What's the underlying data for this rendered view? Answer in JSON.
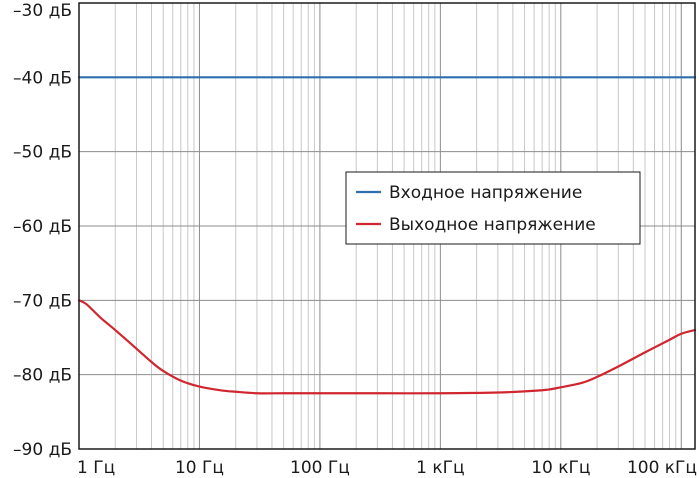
{
  "chart_data": {
    "type": "line",
    "xscale": "log",
    "xlim": [
      1,
      130000
    ],
    "ylim": [
      -90,
      -30
    ],
    "grid": true,
    "yticks": [
      -30,
      -40,
      -50,
      -60,
      -70,
      -80,
      -90
    ],
    "ytick_labels": [
      "–30 дБ",
      "–40 дБ",
      "–50 дБ",
      "–60 дБ",
      "–70 дБ",
      "–80 дБ",
      "–90 дБ"
    ],
    "xticks": [
      1,
      10,
      100,
      1000,
      10000,
      100000
    ],
    "xtick_labels": [
      "1 Гц",
      "10 Гц",
      "100 Гц",
      "1 кГц",
      "10 кГц",
      "100 кГц"
    ],
    "legend_position": "center-right",
    "series": [
      {
        "name": "Входное напряжение",
        "color": "#2f6fb0",
        "x": [
          1,
          130000
        ],
        "y": [
          -40,
          -40
        ]
      },
      {
        "name": "Выходное напряжение",
        "color": "#d0262f",
        "x": [
          1,
          1.15,
          1.5,
          2,
          3,
          4,
          5,
          7,
          10,
          15,
          20,
          30,
          50,
          100,
          300,
          1000,
          3000,
          7000,
          10000,
          15000,
          20000,
          30000,
          50000,
          80000,
          100000,
          130000
        ],
        "y": [
          -70,
          -70.5,
          -72.3,
          -74,
          -76.5,
          -78.3,
          -79.5,
          -80.8,
          -81.6,
          -82.1,
          -82.3,
          -82.5,
          -82.5,
          -82.5,
          -82.5,
          -82.5,
          -82.4,
          -82.1,
          -81.7,
          -81.1,
          -80.3,
          -78.9,
          -77,
          -75.3,
          -74.5,
          -74
        ]
      }
    ]
  }
}
